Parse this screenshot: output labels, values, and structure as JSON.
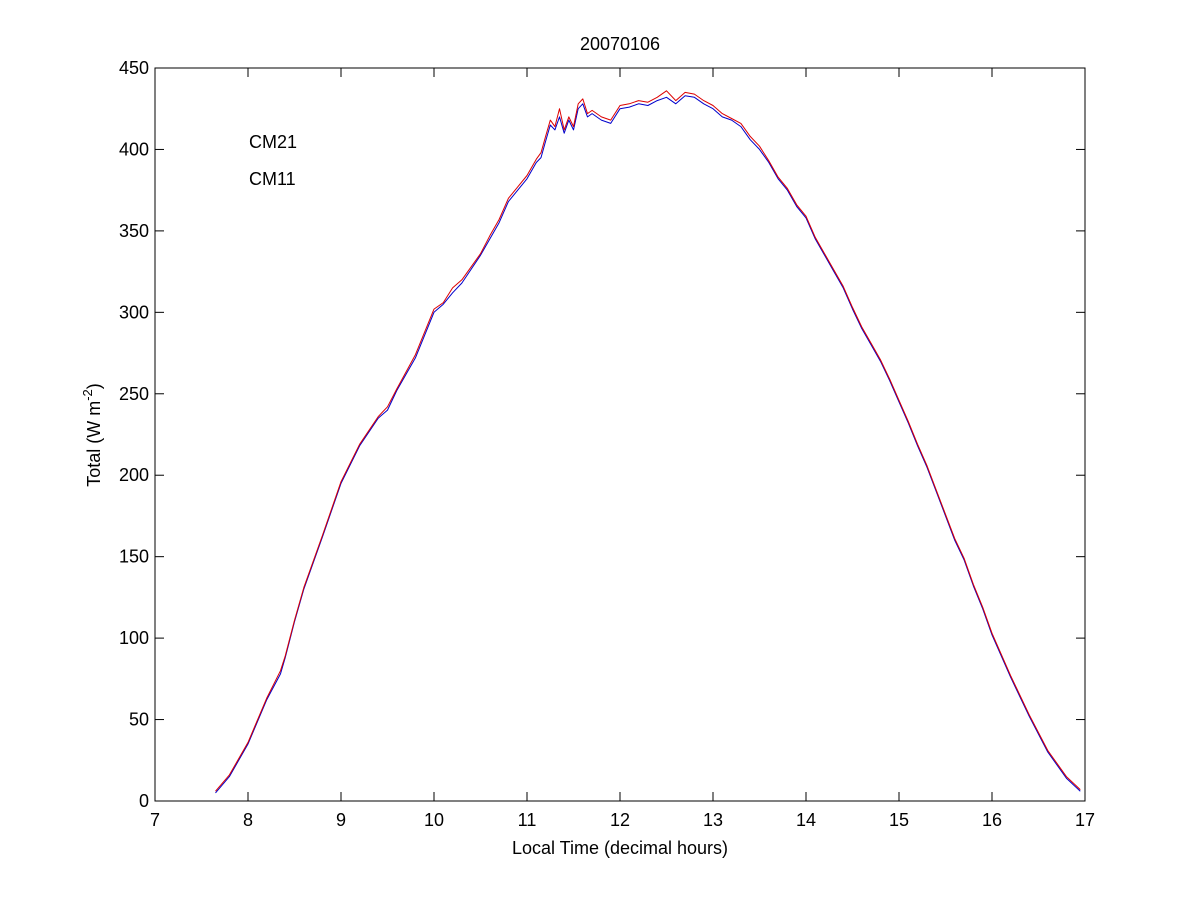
{
  "chart_data": {
    "type": "line",
    "title": "20070106",
    "xlabel": "Local Time (decimal hours)",
    "ylabel": {
      "main": "Total (W m",
      "sup": "-2",
      "close": ")"
    },
    "xlim": [
      7,
      17
    ],
    "ylim": [
      0,
      450
    ],
    "xticks": [
      7,
      8,
      9,
      10,
      11,
      12,
      13,
      14,
      15,
      16,
      17
    ],
    "yticks": [
      0,
      50,
      100,
      150,
      200,
      250,
      300,
      350,
      400,
      450
    ],
    "grid": false,
    "legend_position": "top-left",
    "series": [
      {
        "name": "CM21",
        "color": "#0000cc",
        "x": [
          7.65,
          7.8,
          8.0,
          8.2,
          8.35,
          8.4,
          8.5,
          8.6,
          8.8,
          9.0,
          9.2,
          9.4,
          9.5,
          9.6,
          9.8,
          10.0,
          10.1,
          10.2,
          10.3,
          10.5,
          10.6,
          10.7,
          10.8,
          10.9,
          11.0,
          11.1,
          11.15,
          11.2,
          11.25,
          11.3,
          11.35,
          11.4,
          11.45,
          11.5,
          11.55,
          11.6,
          11.65,
          11.7,
          11.8,
          11.9,
          12.0,
          12.1,
          12.2,
          12.3,
          12.4,
          12.5,
          12.6,
          12.7,
          12.8,
          12.9,
          13.0,
          13.1,
          13.2,
          13.3,
          13.4,
          13.5,
          13.6,
          13.7,
          13.8,
          13.9,
          14.0,
          14.1,
          14.2,
          14.3,
          14.4,
          14.5,
          14.6,
          14.7,
          14.8,
          14.9,
          15.0,
          15.1,
          15.2,
          15.3,
          15.4,
          15.5,
          15.6,
          15.7,
          15.8,
          15.9,
          16.0,
          16.2,
          16.4,
          16.6,
          16.8,
          16.95
        ],
        "y": [
          5,
          15,
          35,
          62,
          78,
          88,
          110,
          130,
          162,
          195,
          218,
          235,
          240,
          252,
          272,
          300,
          305,
          312,
          318,
          335,
          345,
          355,
          368,
          375,
          382,
          392,
          395,
          405,
          415,
          412,
          420,
          410,
          418,
          412,
          425,
          428,
          420,
          422,
          418,
          416,
          425,
          426,
          428,
          427,
          430,
          432,
          428,
          433,
          432,
          428,
          425,
          420,
          418,
          414,
          406,
          400,
          392,
          382,
          375,
          365,
          358,
          345,
          335,
          325,
          315,
          302,
          290,
          280,
          270,
          258,
          245,
          232,
          218,
          205,
          190,
          175,
          160,
          148,
          132,
          118,
          102,
          76,
          52,
          30,
          14,
          6
        ]
      },
      {
        "name": "CM11",
        "color": "#dd0000",
        "x": [
          7.65,
          7.8,
          8.0,
          8.2,
          8.35,
          8.4,
          8.5,
          8.6,
          8.8,
          9.0,
          9.2,
          9.4,
          9.5,
          9.6,
          9.8,
          10.0,
          10.1,
          10.2,
          10.3,
          10.5,
          10.6,
          10.7,
          10.8,
          10.9,
          11.0,
          11.1,
          11.15,
          11.2,
          11.25,
          11.3,
          11.35,
          11.4,
          11.45,
          11.5,
          11.55,
          11.6,
          11.65,
          11.7,
          11.8,
          11.9,
          12.0,
          12.1,
          12.2,
          12.3,
          12.4,
          12.5,
          12.6,
          12.7,
          12.8,
          12.9,
          13.0,
          13.1,
          13.2,
          13.3,
          13.4,
          13.5,
          13.6,
          13.7,
          13.8,
          13.9,
          14.0,
          14.1,
          14.2,
          14.3,
          14.4,
          14.5,
          14.6,
          14.7,
          14.8,
          14.9,
          15.0,
          15.1,
          15.2,
          15.3,
          15.4,
          15.5,
          15.6,
          15.7,
          15.8,
          15.9,
          16.0,
          16.2,
          16.4,
          16.6,
          16.8,
          16.95
        ],
        "y": [
          6,
          16,
          36,
          63,
          80,
          89,
          111,
          131,
          163,
          196,
          219,
          236,
          242,
          253,
          274,
          302,
          306,
          315,
          320,
          336,
          347,
          357,
          370,
          377,
          384,
          394,
          398,
          408,
          418,
          414,
          425,
          412,
          420,
          414,
          428,
          431,
          422,
          424,
          420,
          418,
          427,
          428,
          430,
          429,
          432,
          436,
          430,
          435,
          434,
          430,
          427,
          422,
          419,
          416,
          408,
          402,
          393,
          383,
          376,
          366,
          359,
          346,
          336,
          326,
          316,
          303,
          291,
          281,
          271,
          259,
          246,
          233,
          219,
          206,
          191,
          176,
          161,
          149,
          133,
          119,
          103,
          77,
          53,
          31,
          15,
          7
        ]
      }
    ]
  }
}
